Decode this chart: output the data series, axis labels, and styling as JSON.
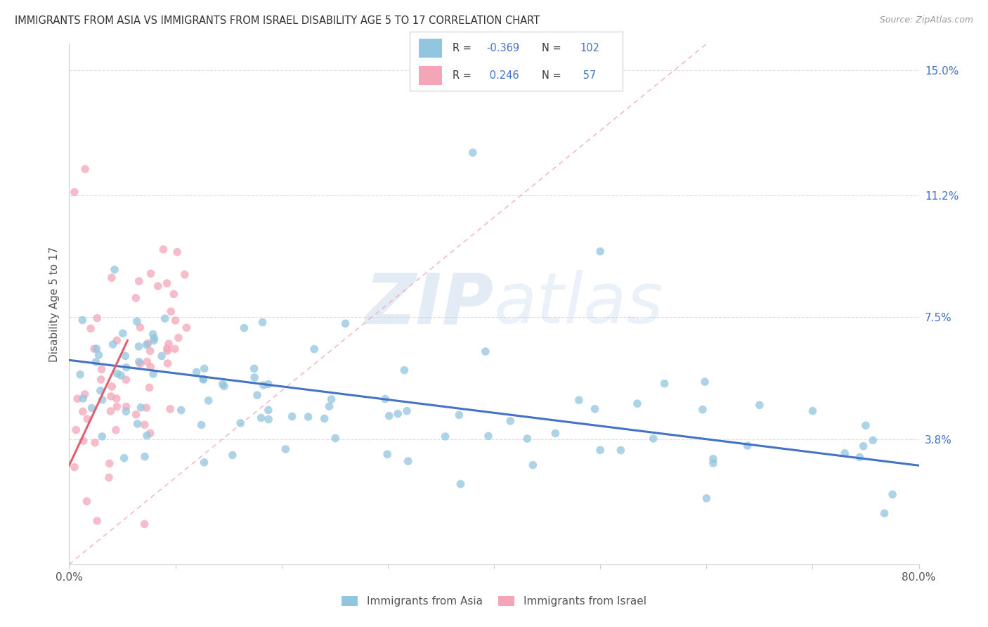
{
  "title": "IMMIGRANTS FROM ASIA VS IMMIGRANTS FROM ISRAEL DISABILITY AGE 5 TO 17 CORRELATION CHART",
  "source": "Source: ZipAtlas.com",
  "ylabel": "Disability Age 5 to 17",
  "yticks": [
    "15.0%",
    "11.2%",
    "7.5%",
    "3.8%"
  ],
  "ytick_vals": [
    0.15,
    0.112,
    0.075,
    0.038
  ],
  "xlim": [
    0.0,
    0.8
  ],
  "ylim": [
    0.0,
    0.158
  ],
  "legend_r_asia": "-0.369",
  "legend_n_asia": "102",
  "legend_r_israel": "0.246",
  "legend_n_israel": "57",
  "watermark_zip": "ZIP",
  "watermark_atlas": "atlas",
  "asia_color": "#92C5DE",
  "israel_color": "#F4A6B8",
  "trend_asia_color": "#4472C4",
  "trend_israel_color": "#E06070",
  "diagonal_color": "#F4A6B8",
  "background_color": "#FFFFFF",
  "grid_color": "#E0E0E0",
  "asia_trend_x0": 0.0,
  "asia_trend_y0": 0.062,
  "asia_trend_x1": 0.8,
  "asia_trend_y1": 0.03,
  "israel_trend_x0": 0.0,
  "israel_trend_y0": 0.03,
  "israel_trend_x1": 0.055,
  "israel_trend_y1": 0.068
}
